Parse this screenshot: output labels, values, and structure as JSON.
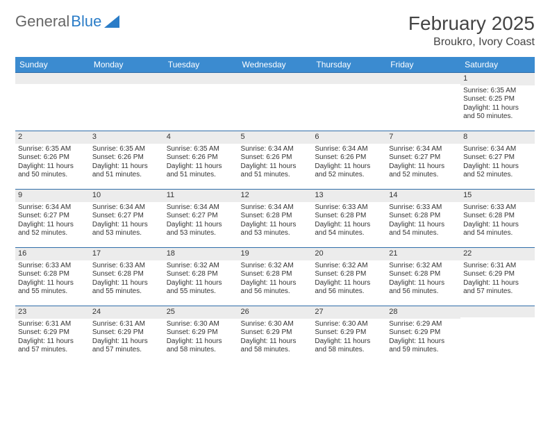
{
  "brand": {
    "part1": "General",
    "part2": "Blue"
  },
  "title": "February 2025",
  "location": "Broukro, Ivory Coast",
  "colors": {
    "header_bg": "#3b8bd0",
    "header_text": "#ffffff",
    "row_border": "#2e6ca8",
    "daynum_bg": "#ececec",
    "logo_accent": "#2a7cc7"
  },
  "weekdays": [
    "Sunday",
    "Monday",
    "Tuesday",
    "Wednesday",
    "Thursday",
    "Friday",
    "Saturday"
  ],
  "weeks": [
    [
      {
        "day": "",
        "sunrise": "",
        "sunset": "",
        "daylight": ""
      },
      {
        "day": "",
        "sunrise": "",
        "sunset": "",
        "daylight": ""
      },
      {
        "day": "",
        "sunrise": "",
        "sunset": "",
        "daylight": ""
      },
      {
        "day": "",
        "sunrise": "",
        "sunset": "",
        "daylight": ""
      },
      {
        "day": "",
        "sunrise": "",
        "sunset": "",
        "daylight": ""
      },
      {
        "day": "",
        "sunrise": "",
        "sunset": "",
        "daylight": ""
      },
      {
        "day": "1",
        "sunrise": "Sunrise: 6:35 AM",
        "sunset": "Sunset: 6:25 PM",
        "daylight": "Daylight: 11 hours and 50 minutes."
      }
    ],
    [
      {
        "day": "2",
        "sunrise": "Sunrise: 6:35 AM",
        "sunset": "Sunset: 6:26 PM",
        "daylight": "Daylight: 11 hours and 50 minutes."
      },
      {
        "day": "3",
        "sunrise": "Sunrise: 6:35 AM",
        "sunset": "Sunset: 6:26 PM",
        "daylight": "Daylight: 11 hours and 51 minutes."
      },
      {
        "day": "4",
        "sunrise": "Sunrise: 6:35 AM",
        "sunset": "Sunset: 6:26 PM",
        "daylight": "Daylight: 11 hours and 51 minutes."
      },
      {
        "day": "5",
        "sunrise": "Sunrise: 6:34 AM",
        "sunset": "Sunset: 6:26 PM",
        "daylight": "Daylight: 11 hours and 51 minutes."
      },
      {
        "day": "6",
        "sunrise": "Sunrise: 6:34 AM",
        "sunset": "Sunset: 6:26 PM",
        "daylight": "Daylight: 11 hours and 52 minutes."
      },
      {
        "day": "7",
        "sunrise": "Sunrise: 6:34 AM",
        "sunset": "Sunset: 6:27 PM",
        "daylight": "Daylight: 11 hours and 52 minutes."
      },
      {
        "day": "8",
        "sunrise": "Sunrise: 6:34 AM",
        "sunset": "Sunset: 6:27 PM",
        "daylight": "Daylight: 11 hours and 52 minutes."
      }
    ],
    [
      {
        "day": "9",
        "sunrise": "Sunrise: 6:34 AM",
        "sunset": "Sunset: 6:27 PM",
        "daylight": "Daylight: 11 hours and 52 minutes."
      },
      {
        "day": "10",
        "sunrise": "Sunrise: 6:34 AM",
        "sunset": "Sunset: 6:27 PM",
        "daylight": "Daylight: 11 hours and 53 minutes."
      },
      {
        "day": "11",
        "sunrise": "Sunrise: 6:34 AM",
        "sunset": "Sunset: 6:27 PM",
        "daylight": "Daylight: 11 hours and 53 minutes."
      },
      {
        "day": "12",
        "sunrise": "Sunrise: 6:34 AM",
        "sunset": "Sunset: 6:28 PM",
        "daylight": "Daylight: 11 hours and 53 minutes."
      },
      {
        "day": "13",
        "sunrise": "Sunrise: 6:33 AM",
        "sunset": "Sunset: 6:28 PM",
        "daylight": "Daylight: 11 hours and 54 minutes."
      },
      {
        "day": "14",
        "sunrise": "Sunrise: 6:33 AM",
        "sunset": "Sunset: 6:28 PM",
        "daylight": "Daylight: 11 hours and 54 minutes."
      },
      {
        "day": "15",
        "sunrise": "Sunrise: 6:33 AM",
        "sunset": "Sunset: 6:28 PM",
        "daylight": "Daylight: 11 hours and 54 minutes."
      }
    ],
    [
      {
        "day": "16",
        "sunrise": "Sunrise: 6:33 AM",
        "sunset": "Sunset: 6:28 PM",
        "daylight": "Daylight: 11 hours and 55 minutes."
      },
      {
        "day": "17",
        "sunrise": "Sunrise: 6:33 AM",
        "sunset": "Sunset: 6:28 PM",
        "daylight": "Daylight: 11 hours and 55 minutes."
      },
      {
        "day": "18",
        "sunrise": "Sunrise: 6:32 AM",
        "sunset": "Sunset: 6:28 PM",
        "daylight": "Daylight: 11 hours and 55 minutes."
      },
      {
        "day": "19",
        "sunrise": "Sunrise: 6:32 AM",
        "sunset": "Sunset: 6:28 PM",
        "daylight": "Daylight: 11 hours and 56 minutes."
      },
      {
        "day": "20",
        "sunrise": "Sunrise: 6:32 AM",
        "sunset": "Sunset: 6:28 PM",
        "daylight": "Daylight: 11 hours and 56 minutes."
      },
      {
        "day": "21",
        "sunrise": "Sunrise: 6:32 AM",
        "sunset": "Sunset: 6:28 PM",
        "daylight": "Daylight: 11 hours and 56 minutes."
      },
      {
        "day": "22",
        "sunrise": "Sunrise: 6:31 AM",
        "sunset": "Sunset: 6:29 PM",
        "daylight": "Daylight: 11 hours and 57 minutes."
      }
    ],
    [
      {
        "day": "23",
        "sunrise": "Sunrise: 6:31 AM",
        "sunset": "Sunset: 6:29 PM",
        "daylight": "Daylight: 11 hours and 57 minutes."
      },
      {
        "day": "24",
        "sunrise": "Sunrise: 6:31 AM",
        "sunset": "Sunset: 6:29 PM",
        "daylight": "Daylight: 11 hours and 57 minutes."
      },
      {
        "day": "25",
        "sunrise": "Sunrise: 6:30 AM",
        "sunset": "Sunset: 6:29 PM",
        "daylight": "Daylight: 11 hours and 58 minutes."
      },
      {
        "day": "26",
        "sunrise": "Sunrise: 6:30 AM",
        "sunset": "Sunset: 6:29 PM",
        "daylight": "Daylight: 11 hours and 58 minutes."
      },
      {
        "day": "27",
        "sunrise": "Sunrise: 6:30 AM",
        "sunset": "Sunset: 6:29 PM",
        "daylight": "Daylight: 11 hours and 58 minutes."
      },
      {
        "day": "28",
        "sunrise": "Sunrise: 6:29 AM",
        "sunset": "Sunset: 6:29 PM",
        "daylight": "Daylight: 11 hours and 59 minutes."
      },
      {
        "day": "",
        "sunrise": "",
        "sunset": "",
        "daylight": ""
      }
    ]
  ]
}
